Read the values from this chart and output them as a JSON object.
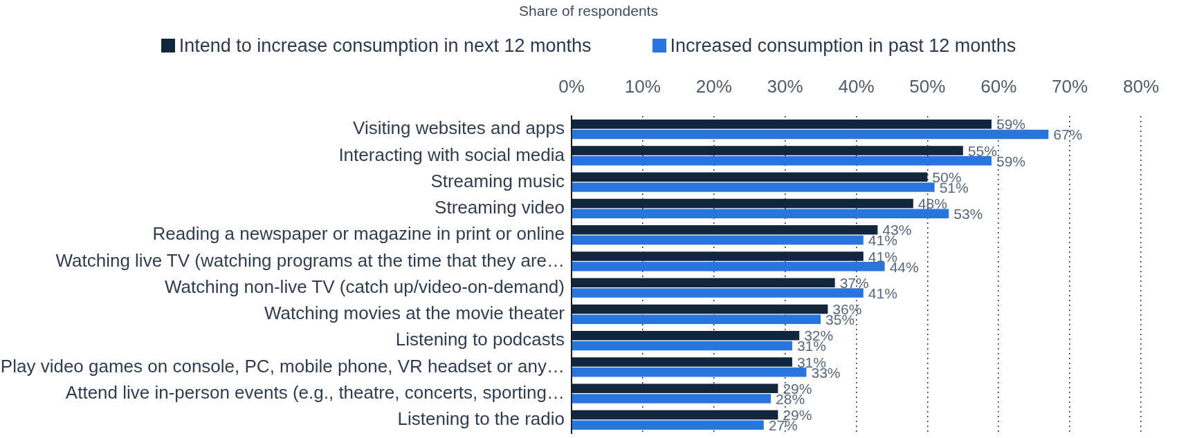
{
  "chart_data": {
    "type": "bar",
    "orientation": "horizontal",
    "annotations": [
      "Share of respondents"
    ],
    "categories": [
      "Visiting websites and apps",
      "Interacting with social media",
      "Streaming music",
      "Streaming video",
      "Reading a newspaper or magazine in print or online",
      "Watching live TV (watching programs at the time that they are…",
      "Watching non-live TV (catch up/video-on-demand)",
      "Watching movies at the movie theater",
      "Listening to podcasts",
      "Play video games on console, PC, mobile phone, VR headset or any…",
      "Attend live in-person events (e.g., theatre, concerts, sporting…",
      "Listening to the radio"
    ],
    "series": [
      {
        "name": "Intend to increase consumption in next 12 months",
        "color": "#12263d",
        "values": [
          59,
          55,
          50,
          48,
          43,
          41,
          37,
          36,
          32,
          31,
          29,
          29
        ],
        "value_labels": [
          "59%",
          "55%",
          "50%",
          "48%",
          "43%",
          "41%",
          "37%",
          "36%",
          "32%",
          "31%",
          "29%",
          "29%"
        ]
      },
      {
        "name": "Increased consumption in past 12 months",
        "color": "#2876dd",
        "values": [
          67,
          59,
          51,
          53,
          41,
          44,
          41,
          35,
          31,
          33,
          28,
          27
        ],
        "value_labels": [
          "67%",
          "59%",
          "51%",
          "53%",
          "41%",
          "44%",
          "41%",
          "35%",
          "31%",
          "33%",
          "28%",
          "27%"
        ]
      }
    ],
    "xlim": [
      0,
      80
    ],
    "xticks": [
      {
        "value": 0,
        "label": "0%"
      },
      {
        "value": 10,
        "label": "10%"
      },
      {
        "value": 20,
        "label": "20%"
      },
      {
        "value": 30,
        "label": "30%"
      },
      {
        "value": 40,
        "label": "40%"
      },
      {
        "value": 50,
        "label": "50%"
      },
      {
        "value": 60,
        "label": "60%"
      },
      {
        "value": 70,
        "label": "70%"
      },
      {
        "value": 80,
        "label": "80%"
      }
    ],
    "grid": "x",
    "legend": "top"
  }
}
